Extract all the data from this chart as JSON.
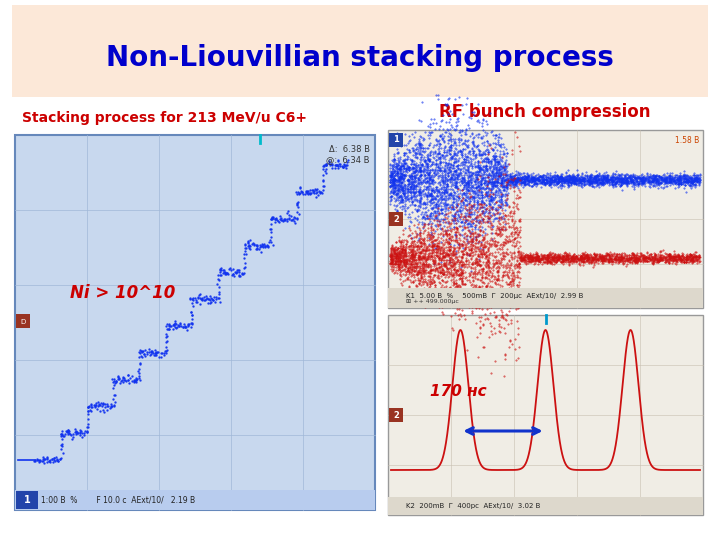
{
  "bg_color": "#ffffff",
  "header_bg": "#fce8d8",
  "title_text": "Non-Liouvillian stacking process",
  "title_color": "#0000cc",
  "title_fontsize": 20,
  "rf_label": "RF bunch compression",
  "rf_label_color": "#cc0000",
  "rf_label_fontsize": 12,
  "stacking_label": "Stacking process for 213 MeV/u C6+",
  "stacking_label_color": "#cc0000",
  "stacking_label_fontsize": 10,
  "ni_label": "Ni > 10^10",
  "ni_label_color": "#cc0000",
  "ni_label_fontsize": 12,
  "arrow_170_label": "170 нс",
  "arrow_170_color": "#cc0000",
  "arrow_170_fontsize": 11,
  "osc_bg": "#f0ede5",
  "osc_border": "#999999",
  "blue_scatter": "#1133ee",
  "red_scatter": "#cc1111",
  "red_trace": "#cc1111",
  "arrow_blue": "#1133cc",
  "left_plot_bg": "#c8d8ee",
  "left_plot_border": "#6688bb",
  "grid_color_left": "#a0b8d8",
  "grid_color_right": "#c8bfb0"
}
